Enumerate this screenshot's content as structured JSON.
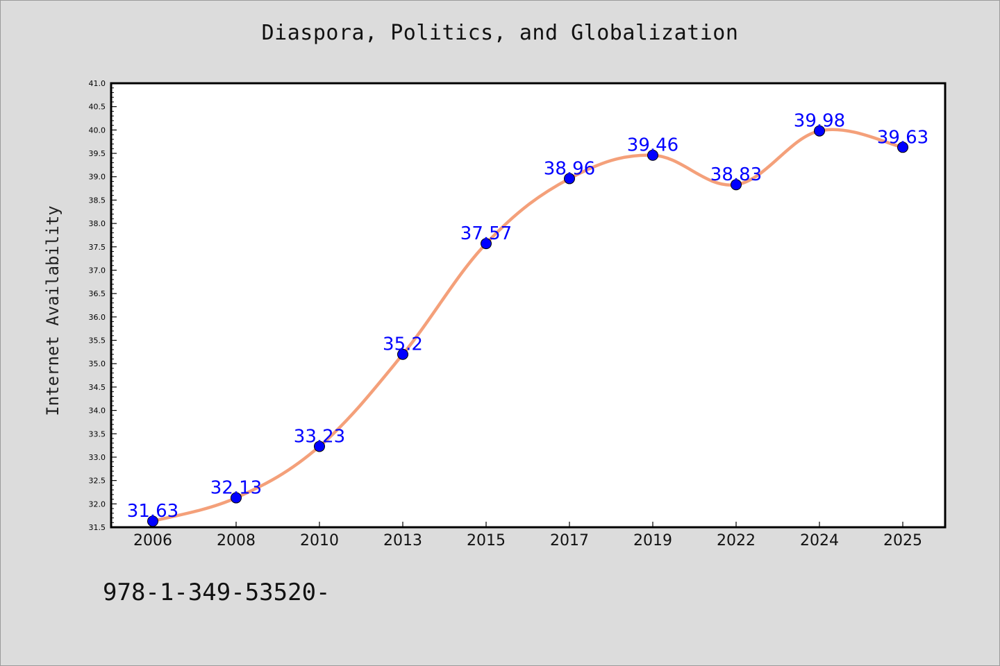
{
  "chart_data": {
    "type": "line",
    "title": "Diaspora, Politics, and Globalization",
    "xlabel": "",
    "ylabel": "Internet Availability",
    "categories": [
      "2006",
      "2008",
      "2010",
      "2013",
      "2015",
      "2017",
      "2019",
      "2022",
      "2024",
      "2025"
    ],
    "values": [
      31.63,
      32.13,
      33.23,
      35.2,
      37.57,
      38.96,
      39.46,
      38.83,
      39.98,
      39.63
    ],
    "data_labels": [
      "31.63",
      "32.13",
      "33.23",
      "35.2",
      "37.57",
      "38.96",
      "39.46",
      "38.83",
      "39.98",
      "39.63"
    ],
    "ylim": [
      31.5,
      41.0
    ],
    "yticks": [
      "31.5",
      "32.0",
      "32.5",
      "33.0",
      "33.5",
      "34.0",
      "34.5",
      "35.0",
      "35.5",
      "36.0",
      "36.5",
      "37.0",
      "37.5",
      "38.0",
      "38.5",
      "39.0",
      "39.5",
      "40.0",
      "40.5",
      "41.0"
    ],
    "grid": false,
    "colors": {
      "line": "#f4a07a",
      "marker": "#0000ff",
      "label": "#0000ff",
      "background": "#dcdcdc",
      "plot_area": "#ffffff"
    }
  },
  "footer": {
    "isbn": "978-1-349-53520-"
  }
}
